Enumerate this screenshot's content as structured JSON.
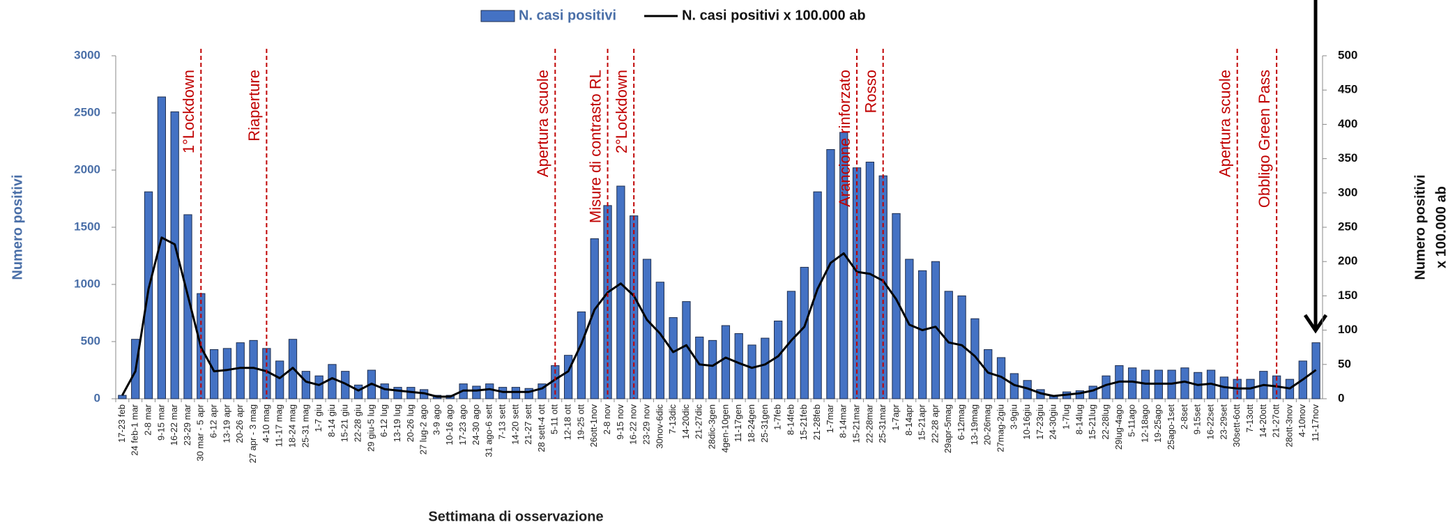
{
  "chart_data": {
    "type": "bar",
    "legend": "top",
    "xlabel": "Settimana di osservazione",
    "ylabel": "Numero positivi",
    "y2label": [
      "Numero positivi",
      "x 100.000 ab"
    ],
    "ylim": [
      0,
      3000
    ],
    "yticks": [
      0,
      500,
      1000,
      1500,
      2000,
      2500,
      3000
    ],
    "y2lim": [
      0,
      500
    ],
    "y2ticks": [
      0,
      50,
      100,
      150,
      200,
      250,
      300,
      350,
      400,
      450,
      500
    ],
    "categories": [
      "17-23 feb",
      "24 feb-1 mar",
      "2-8 mar",
      "9-15 mar",
      "16-22 mar",
      "23-29 mar",
      "30 mar - 5 apr",
      "6-12 apr",
      "13-19 apr",
      "20-26 apr",
      "27 apr - 3 mag",
      "4-10 mag",
      "11-17 mag",
      "18-24 mag",
      "25-31 mag",
      "1-7 giu",
      "8-14 giu",
      "15-21 giu",
      "22-28 giu",
      "29 giu-5 lug",
      "6-12 lug",
      "13-19 lug",
      "20-26 lug",
      "27 lug-2 ago",
      "3-9 ago",
      "10-16 ago",
      "17-23 ago",
      "24-30 ago",
      "31 ago-6 sett",
      "7-13 sett",
      "14-20 sett",
      "21-27 sett",
      "28 sett-4 ott",
      "5-11 ott",
      "12-18 ott",
      "19-25 ott",
      "26ott-1nov",
      "2-8 nov",
      "9-15 nov",
      "16-22 nov",
      "23-29 nov",
      "30nov-6dic",
      "7-13dic",
      "14-20dic",
      "21-27dic",
      "28dic-3gen",
      "4gen-10gen",
      "11-17gen",
      "18-24gen",
      "25-31gen",
      "1-7feb",
      "8-14feb",
      "15-21feb",
      "21-28feb",
      "1-7mar",
      "8-14mar",
      "15-21mar",
      "22-28mar",
      "25-31mar",
      "1-7apr",
      "8-14apr",
      "15-21apr",
      "22-28 apr",
      "29apr-5mag",
      "6-12mag",
      "13-19mag",
      "20-26mag",
      "27mag-2giu",
      "3-9giu",
      "10-16giu",
      "17-23giu",
      "24-30giu",
      "1-7lug",
      "8-14lug",
      "15-21lug",
      "22-28lug",
      "29lug-4ago",
      "5-11ago",
      "12-18ago",
      "19-25ago",
      "25ago-1set",
      "2-8set",
      "9-15set",
      "16-22set",
      "23-29set",
      "30sett-6ott",
      "7-13ott",
      "14-20ott",
      "21-27ott",
      "28ott-3nov",
      "4-10nov",
      "11-17nov"
    ],
    "series": [
      {
        "name": "N. casi positivi",
        "type": "bar",
        "color": "#4472c4",
        "axis": "y",
        "values": [
          30,
          520,
          1810,
          2640,
          2510,
          1610,
          920,
          430,
          440,
          490,
          510,
          440,
          330,
          520,
          240,
          200,
          300,
          240,
          120,
          250,
          130,
          100,
          100,
          80,
          30,
          30,
          130,
          110,
          130,
          100,
          100,
          90,
          130,
          290,
          380,
          760,
          1400,
          1690,
          1860,
          1600,
          1220,
          1020,
          710,
          850,
          540,
          510,
          640,
          570,
          470,
          530,
          680,
          940,
          1150,
          1810,
          2180,
          2330,
          2020,
          2070,
          1950,
          1620,
          1220,
          1120,
          1200,
          940,
          900,
          700,
          430,
          360,
          220,
          160,
          80,
          30,
          60,
          70,
          110,
          200,
          290,
          270,
          250,
          250,
          250,
          270,
          230,
          250,
          190,
          170,
          170,
          240,
          200,
          170,
          330,
          490
        ]
      },
      {
        "name": "N. casi positivi x 100.000 ab",
        "type": "line",
        "color": "#000000",
        "axis": "y2",
        "values": [
          5,
          40,
          160,
          235,
          225,
          150,
          75,
          40,
          42,
          45,
          45,
          40,
          30,
          45,
          25,
          20,
          30,
          22,
          12,
          22,
          14,
          12,
          10,
          8,
          3,
          3,
          12,
          12,
          14,
          10,
          10,
          10,
          15,
          28,
          40,
          80,
          130,
          155,
          168,
          150,
          115,
          95,
          68,
          78,
          50,
          48,
          60,
          52,
          45,
          50,
          62,
          85,
          105,
          160,
          198,
          212,
          185,
          182,
          172,
          145,
          108,
          100,
          105,
          82,
          78,
          62,
          38,
          32,
          20,
          15,
          8,
          4,
          6,
          8,
          12,
          20,
          25,
          25,
          22,
          22,
          22,
          25,
          20,
          22,
          17,
          15,
          15,
          20,
          18,
          15,
          28,
          42
        ]
      }
    ],
    "annotations": [
      {
        "text": "1°Lockdown",
        "category": "30 mar - 5 apr"
      },
      {
        "text": "Riaperture",
        "category": "4-10 mag"
      },
      {
        "text": "Apertura scuole",
        "category": "5-11 ott"
      },
      {
        "text": "Misure di contrasto RL",
        "category": "2-8 nov"
      },
      {
        "text": "2°Lockdown",
        "category": "16-22 nov"
      },
      {
        "text": "Arancione rinforzato",
        "category": "15-21mar"
      },
      {
        "text": "Rosso",
        "category": "25-31mar"
      },
      {
        "text": "Apertura scuole",
        "category": "30sett-6ott"
      },
      {
        "text": "Obbligo Green Pass",
        "category": "21-27ott"
      }
    ],
    "annotation_color": "#c00000"
  }
}
